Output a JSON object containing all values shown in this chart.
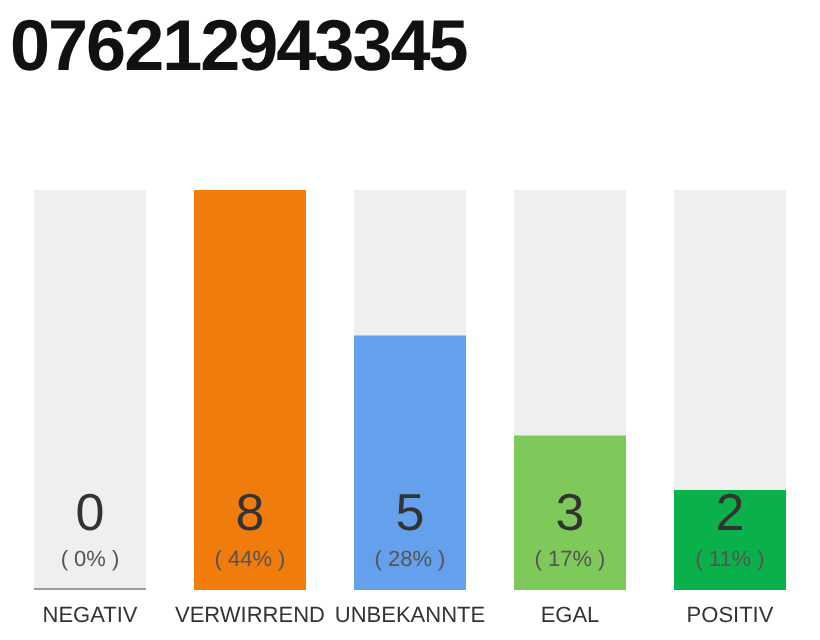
{
  "chart_data": {
    "type": "bar",
    "title": "076212943345",
    "categories": [
      "NEGATIV",
      "VERWIRREND",
      "UNBEKANNTE",
      "EGAL",
      "POSITIV"
    ],
    "values": [
      0,
      44,
      28,
      17,
      11
    ],
    "colors": [
      "#9e9e9e",
      "#f07c0b",
      "#64a0eb",
      "#7ec95a",
      "#0ab14a"
    ],
    "value_labels": [
      "0\n( 0% )",
      "8\n( 44% )",
      "5\n( 28% )",
      "3\n( 17% )",
      "2\n( 11% )"
    ],
    "grid": false,
    "legend": false
  }
}
